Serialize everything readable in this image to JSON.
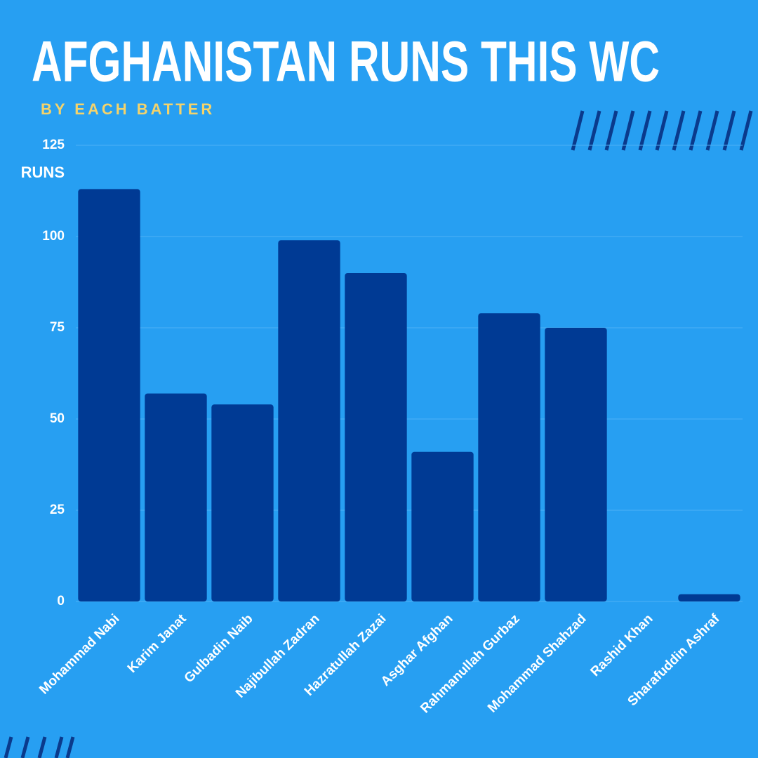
{
  "chart_data": {
    "type": "bar",
    "title": "AFGHANISTAN RUNS THIS WC",
    "subtitle": "BY EACH BATTER",
    "y_label": "RUNS",
    "categories": [
      "Mohammad Nabi",
      "Karim Janat",
      "Gulbadin Naib",
      "Najibullah Zadran",
      "Hazratullah Zazai",
      "Asghar Afghan",
      "Rahmanullah Gurbaz",
      "Mohammad Shahzad",
      "Rashid Khan",
      "Sharafuddin Ashraf"
    ],
    "values": [
      113,
      57,
      54,
      99,
      90,
      41,
      79,
      75,
      0,
      2
    ],
    "color": "#003a94",
    "ylim": [
      0,
      125
    ],
    "yticks": [
      0,
      25,
      50,
      75,
      100,
      125
    ],
    "grid": true
  }
}
